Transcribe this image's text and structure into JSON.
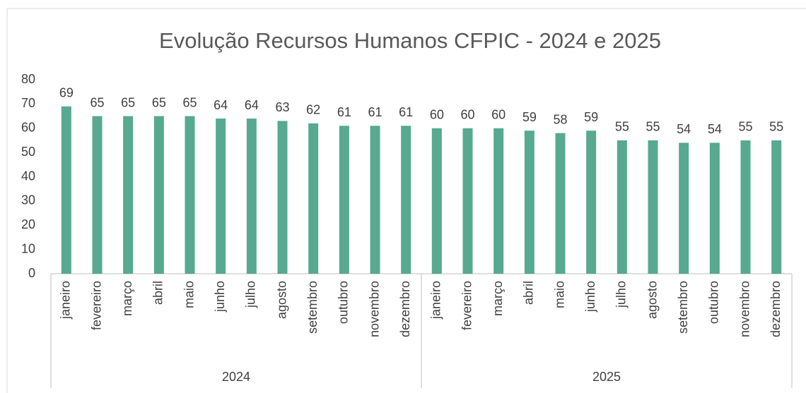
{
  "chart_data": {
    "type": "bar",
    "title": "Evolução Recursos Humanos CFPIC - 2024 e 2025",
    "groups": [
      {
        "name": "2024",
        "categories": [
          "janeiro",
          "fevereiro",
          "março",
          "abril",
          "maio",
          "junho",
          "julho",
          "agosto",
          "setembro",
          "outubro",
          "novembro",
          "dezembro"
        ],
        "values": [
          69,
          65,
          65,
          65,
          65,
          64,
          64,
          63,
          62,
          61,
          61,
          61
        ]
      },
      {
        "name": "2025",
        "categories": [
          "janeiro",
          "fevereiro",
          "março",
          "abril",
          "maio",
          "junho",
          "julho",
          "agosto",
          "setembro",
          "outubro",
          "novembro",
          "dezembro"
        ],
        "values": [
          60,
          60,
          60,
          59,
          58,
          59,
          55,
          55,
          54,
          54,
          55,
          55
        ]
      }
    ],
    "color": "#57a98f",
    "ylim": [
      0,
      80
    ],
    "yticks": [
      0,
      10,
      20,
      30,
      40,
      50,
      60,
      70,
      80
    ],
    "grid": false
  }
}
